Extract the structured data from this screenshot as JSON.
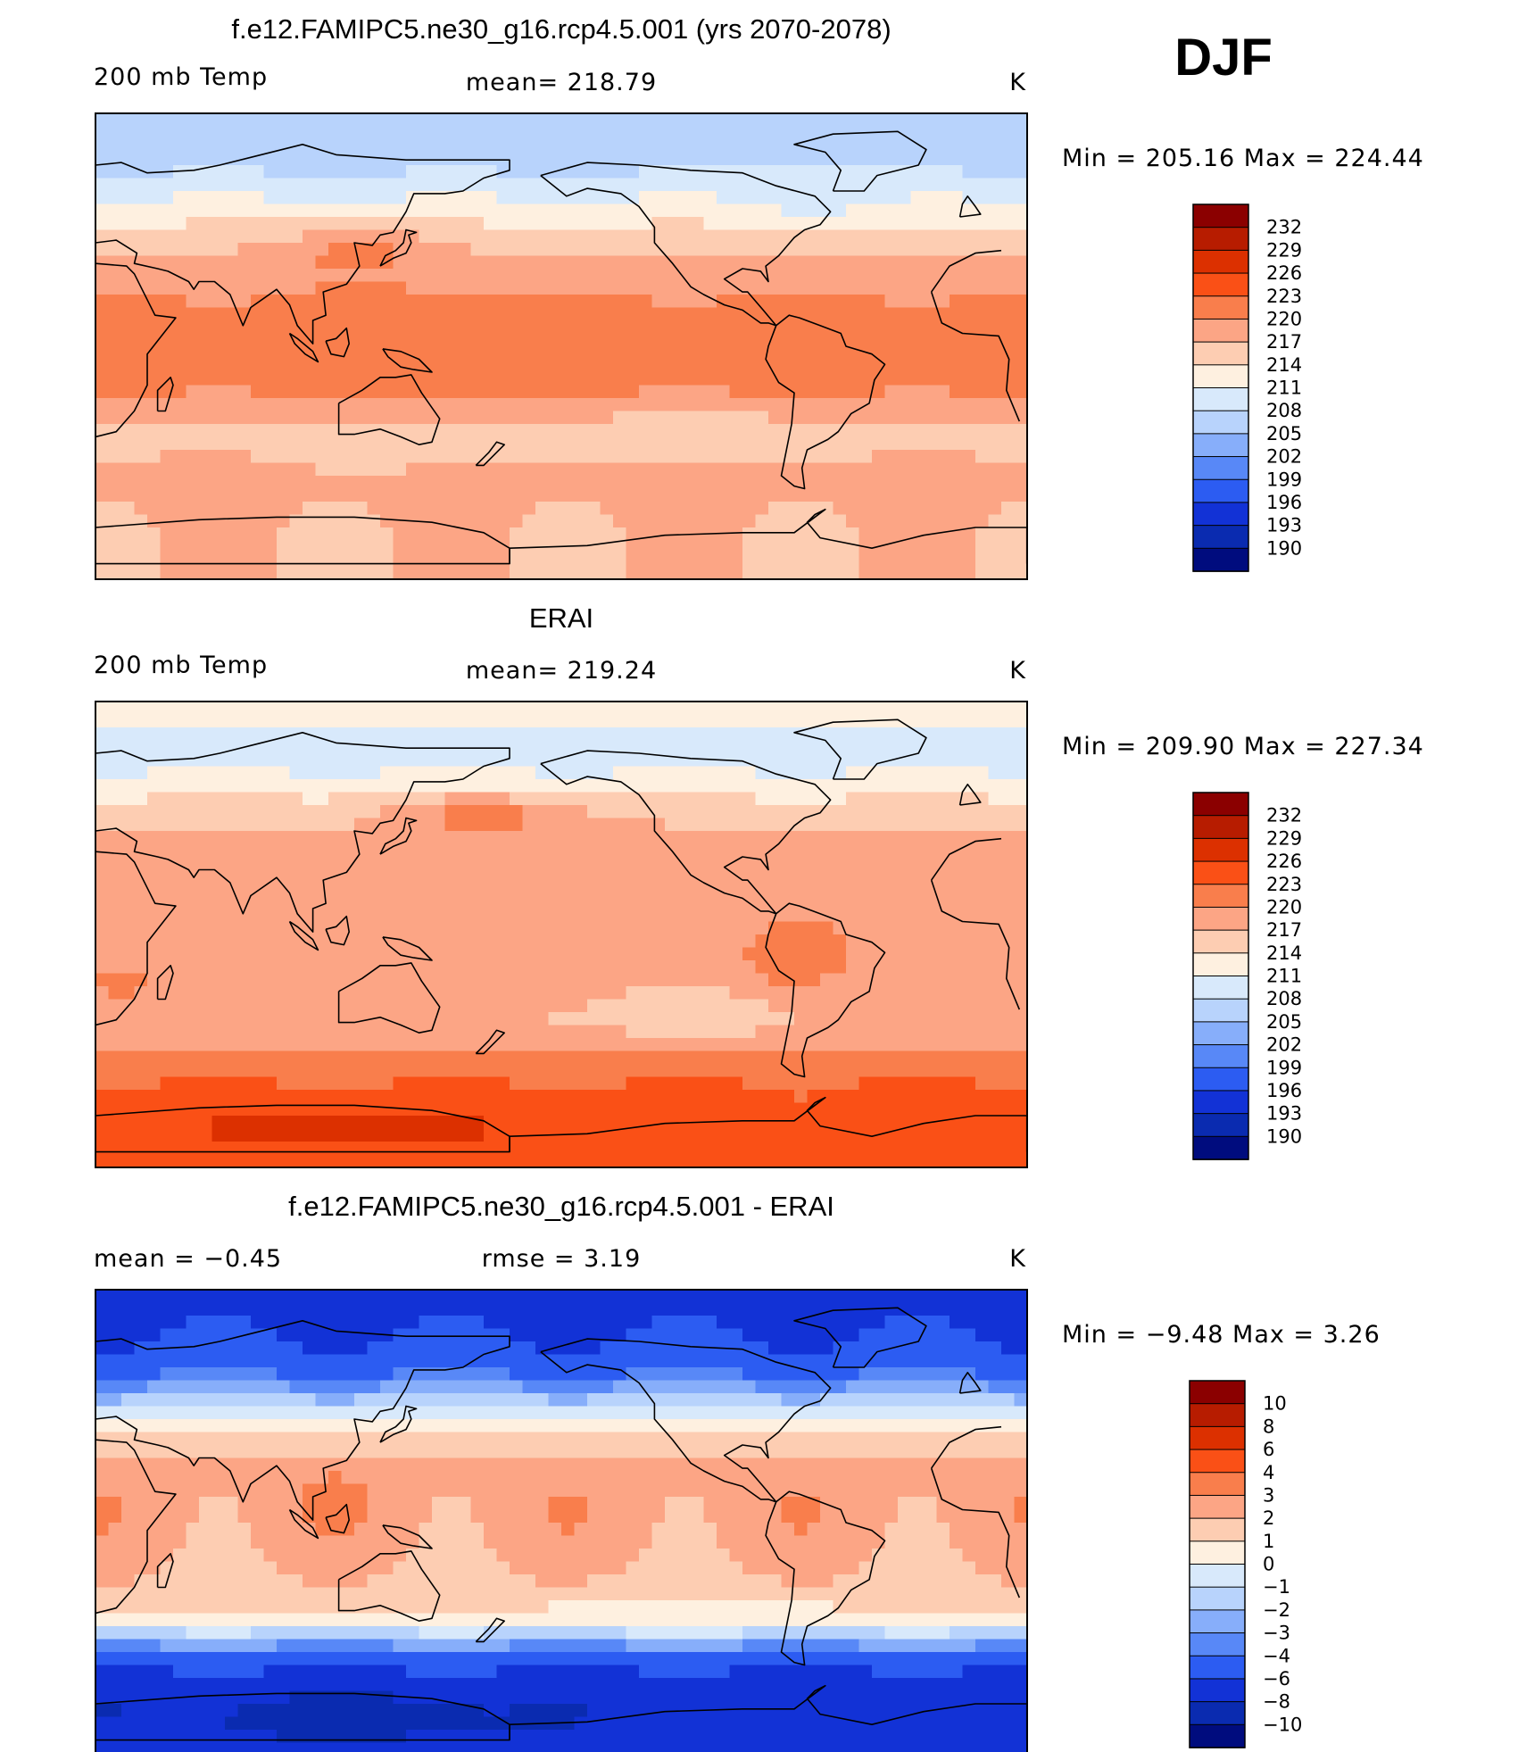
{
  "season": "DJF",
  "panels": [
    {
      "id": "model",
      "title": "f.e12.FAMIPC5.ne30_g16.rcp4.5.001 (yrs 2070-2078)",
      "left_label": "200 mb Temp",
      "center_label": "mean= 218.79",
      "units": "K",
      "minmax": "Min = 205.16 Max = 224.44"
    },
    {
      "id": "obs",
      "title": "ERAI",
      "left_label": "200 mb Temp",
      "center_label": "mean= 219.24",
      "units": "K",
      "minmax": "Min = 209.90 Max = 227.34"
    },
    {
      "id": "diff",
      "title": "f.e12.FAMIPC5.ne30_g16.rcp4.5.001 - ERAI",
      "left_label": "mean = −0.45",
      "center_label": "rmse = 3.19",
      "units": "K",
      "minmax": "Min = −9.48 Max = 3.26"
    }
  ],
  "colorbars": {
    "temperature": {
      "labels": [
        "232",
        "229",
        "226",
        "223",
        "220",
        "217",
        "214",
        "211",
        "208",
        "205",
        "202",
        "199",
        "196",
        "193",
        "190"
      ],
      "colors": [
        "#8b0000",
        "#b71c00",
        "#dc3000",
        "#fa5016",
        "#f97e4c",
        "#fca585",
        "#fdcdb2",
        "#fef0e0",
        "#d8e9fb",
        "#b8d3fc",
        "#87aefa",
        "#5888f7",
        "#2c5cf2",
        "#1232d6",
        "#0a2bb0",
        "#000c7e"
      ]
    },
    "difference": {
      "labels": [
        "10",
        "8",
        "6",
        "4",
        "3",
        "2",
        "1",
        "0",
        "−1",
        "−2",
        "−3",
        "−4",
        "−6",
        "−8",
        "−10"
      ],
      "colors": [
        "#8b0000",
        "#b71c00",
        "#dc3000",
        "#fa5016",
        "#f97e4c",
        "#fca585",
        "#fdcdb2",
        "#fef0e0",
        "#d8e9fb",
        "#b8d3fc",
        "#87aefa",
        "#5888f7",
        "#2c5cf2",
        "#1232d6",
        "#0a2bb0",
        "#000c7e"
      ]
    }
  },
  "chart_data": [
    {
      "type": "heatmap",
      "title": "f.e12.FAMIPC5.ne30_g16.rcp4.5.001 (yrs 2070-2078)",
      "variable": "200 mb Temp",
      "units": "K",
      "mean": 218.79,
      "min": 205.16,
      "max": 224.44,
      "levels": [
        190,
        193,
        196,
        199,
        202,
        205,
        208,
        211,
        214,
        217,
        220,
        223,
        226,
        229,
        232
      ],
      "zonal_bands": [
        {
          "lat": 90,
          "value": 206
        },
        {
          "lat": 70,
          "value": 207
        },
        {
          "lat": 50,
          "value": 213
        },
        {
          "lat": 35,
          "value": 217
        },
        {
          "lat": 20,
          "value": 220
        },
        {
          "lat": 0,
          "value": 221.5
        },
        {
          "lat": -20,
          "value": 220
        },
        {
          "lat": -35,
          "value": 216
        },
        {
          "lat": -50,
          "value": 218
        },
        {
          "lat": -70,
          "value": 217
        },
        {
          "lat": -90,
          "value": 217
        }
      ],
      "features": [
        {
          "lon": 140,
          "lat": 0,
          "value": 223,
          "rlon": 30,
          "rlat": 15
        },
        {
          "lon": 120,
          "lat": 35,
          "value": 221,
          "rlon": 30,
          "rlat": 10
        },
        {
          "lon": 135,
          "lat": -40,
          "value": 214,
          "rlon": 35,
          "rlat": 6
        },
        {
          "lon": -110,
          "lat": -35,
          "value": 214,
          "rlon": 45,
          "rlat": 8
        },
        {
          "lon": -60,
          "lat": 60,
          "value": 210,
          "rlon": 30,
          "rlat": 10
        }
      ]
    },
    {
      "type": "heatmap",
      "title": "ERAI",
      "variable": "200 mb Temp",
      "units": "K",
      "mean": 219.24,
      "min": 209.9,
      "max": 227.34,
      "levels": [
        190,
        193,
        196,
        199,
        202,
        205,
        208,
        211,
        214,
        217,
        220,
        223,
        226,
        229,
        232
      ],
      "zonal_bands": [
        {
          "lat": 90,
          "value": 213
        },
        {
          "lat": 70,
          "value": 209
        },
        {
          "lat": 50,
          "value": 215
        },
        {
          "lat": 35,
          "value": 218
        },
        {
          "lat": 20,
          "value": 219
        },
        {
          "lat": 0,
          "value": 219
        },
        {
          "lat": -20,
          "value": 218
        },
        {
          "lat": -35,
          "value": 217
        },
        {
          "lat": -50,
          "value": 222
        },
        {
          "lat": -70,
          "value": 224.5
        },
        {
          "lat": -90,
          "value": 225
        }
      ],
      "features": [
        {
          "lon": 170,
          "lat": 45,
          "value": 221,
          "rlon": 40,
          "rlat": 8
        },
        {
          "lon": -70,
          "lat": -10,
          "value": 221,
          "rlon": 25,
          "rlat": 15
        },
        {
          "lon": 30,
          "lat": -20,
          "value": 221,
          "rlon": 15,
          "rlat": 6
        },
        {
          "lon": -110,
          "lat": -30,
          "value": 214,
          "rlon": 30,
          "rlat": 8
        },
        {
          "lon": 120,
          "lat": -75,
          "value": 227,
          "rlon": 70,
          "rlat": 8
        }
      ]
    },
    {
      "type": "heatmap",
      "title": "f.e12.FAMIPC5.ne30_g16.rcp4.5.001 - ERAI",
      "variable": "difference",
      "units": "K",
      "mean": -0.45,
      "rmse": 3.19,
      "min": -9.48,
      "max": 3.26,
      "levels": [
        -10,
        -8,
        -6,
        -4,
        -3,
        -2,
        -1,
        0,
        1,
        2,
        3,
        4,
        6,
        8,
        10
      ],
      "zonal_bands": [
        {
          "lat": 90,
          "value": -6.5
        },
        {
          "lat": 70,
          "value": -6
        },
        {
          "lat": 55,
          "value": -3.5
        },
        {
          "lat": 45,
          "value": -1
        },
        {
          "lat": 35,
          "value": 1
        },
        {
          "lat": 20,
          "value": 2.5
        },
        {
          "lat": 0,
          "value": 2.5
        },
        {
          "lat": -20,
          "value": 2
        },
        {
          "lat": -35,
          "value": 1
        },
        {
          "lat": -45,
          "value": -2
        },
        {
          "lat": -55,
          "value": -6
        },
        {
          "lat": -70,
          "value": -7.5
        },
        {
          "lat": -90,
          "value": -7.5
        }
      ],
      "features": [
        {
          "lon": 115,
          "lat": 10,
          "value": 3.2,
          "rlon": 15,
          "rlat": 8
        },
        {
          "lon": -110,
          "lat": -35,
          "value": 0.5,
          "rlon": 45,
          "rlat": 6
        },
        {
          "lon": 120,
          "lat": -75,
          "value": -9,
          "rlon": 60,
          "rlat": 8
        }
      ]
    }
  ]
}
